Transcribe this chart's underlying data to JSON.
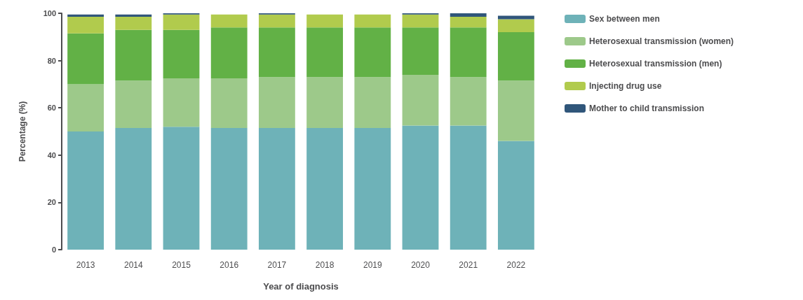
{
  "chart_data": {
    "type": "bar",
    "stacked": true,
    "xlabel": "Year of diagnosis",
    "ylabel": "Percentage (%)",
    "categories": [
      "2013",
      "2014",
      "2015",
      "2016",
      "2017",
      "2018",
      "2019",
      "2020",
      "2021",
      "2022"
    ],
    "series": [
      {
        "name": "Sex between men",
        "color": "#6eb2b8",
        "values": [
          50,
          51.5,
          52,
          51.5,
          51.5,
          51.5,
          51.5,
          52.5,
          52.5,
          46
        ]
      },
      {
        "name": "Heterosexual transmission (women)",
        "color": "#9dc98a",
        "values": [
          20,
          20,
          20.5,
          21,
          21.5,
          21.5,
          21.5,
          21.5,
          20.5,
          25.5
        ]
      },
      {
        "name": "Heterosexual transmission (men)",
        "color": "#62b146",
        "values": [
          21.5,
          21.5,
          20.5,
          21.5,
          21,
          21,
          21,
          20,
          21,
          20.5
        ]
      },
      {
        "name": "Injecting drug use",
        "color": "#b1cb4d",
        "values": [
          7,
          5.5,
          6.5,
          5.5,
          5.5,
          5.5,
          5.5,
          5.5,
          4.5,
          5.5
        ]
      },
      {
        "name": "Mother to child transmission",
        "color": "#30567a",
        "values": [
          1,
          1,
          0.5,
          null,
          0.5,
          null,
          null,
          0.5,
          1.5,
          1.5
        ]
      }
    ],
    "ylim": [
      0,
      100
    ],
    "yticks": [
      0,
      20,
      40,
      60,
      80,
      100
    ],
    "grid": false,
    "legend": "right"
  }
}
